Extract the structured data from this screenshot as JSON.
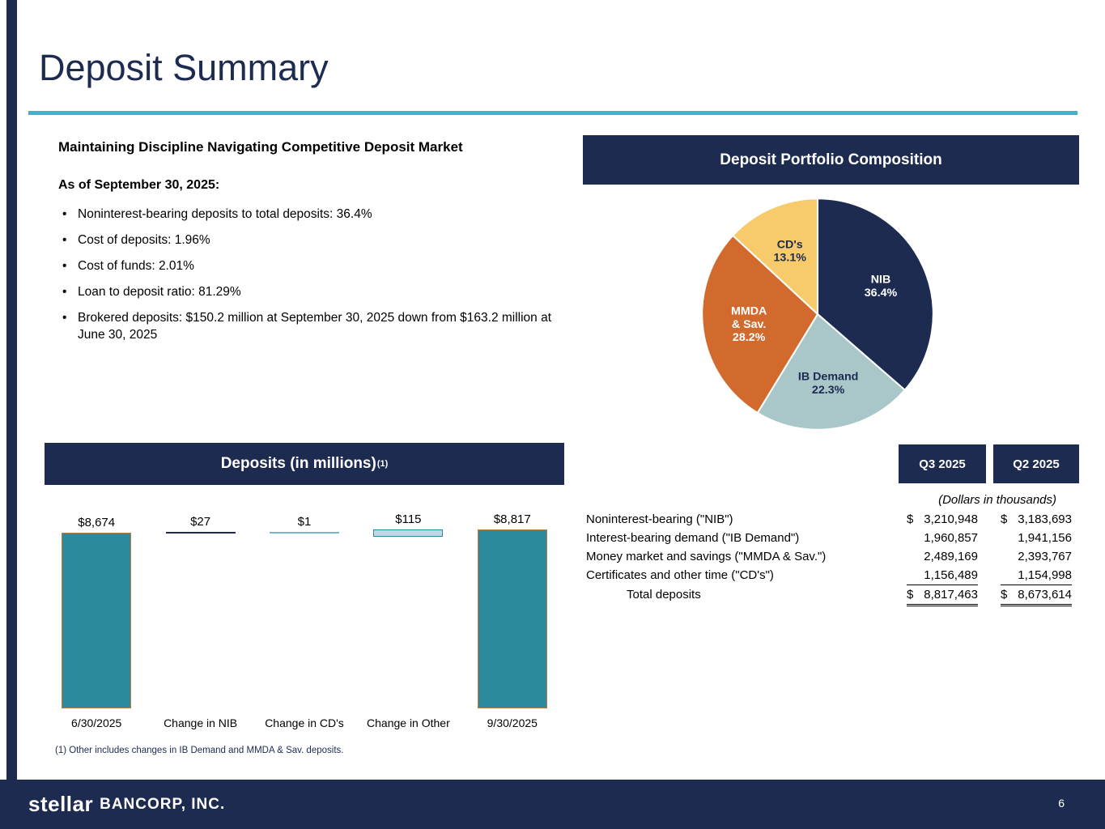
{
  "slide": {
    "title": "Deposit Summary",
    "page_number": "6"
  },
  "left_panel": {
    "heading": "Maintaining Discipline Navigating Competitive Deposit Market",
    "as_of": "As of September 30, 2025:",
    "bullets": [
      "Noninterest-bearing deposits to total deposits: 36.4%",
      "Cost of deposits: 1.96%",
      "Cost of funds: 2.01%",
      "Loan to deposit ratio: 81.29%",
      "Brokered deposits: $150.2 million at September 30, 2025 down from $163.2 million at June 30, 2025"
    ]
  },
  "pie_panel": {
    "title": "Deposit Portfolio Composition"
  },
  "waterfall_panel": {
    "title_main": "Deposits (in millions)",
    "title_sup": "(1)",
    "footnote": "(1) Other includes changes in IB Demand and MMDA & Sav. deposits."
  },
  "table": {
    "col_headers": [
      "Q3 2025",
      "Q2 2025"
    ],
    "units_note": "(Dollars in thousands)",
    "rows": [
      {
        "label": "Noninterest-bearing (\"NIB\")",
        "indent": false,
        "q3_sign": "$",
        "q3": "3,210,948",
        "q2_sign": "$",
        "q2": "3,183,693",
        "underline": "none"
      },
      {
        "label": "Interest-bearing demand (\"IB Demand\")",
        "indent": false,
        "q3_sign": "",
        "q3": "1,960,857",
        "q2_sign": "",
        "q2": "1,941,156",
        "underline": "none"
      },
      {
        "label": "Money market and savings (\"MMDA & Sav.\")",
        "indent": false,
        "q3_sign": "",
        "q3": "2,489,169",
        "q2_sign": "",
        "q2": "2,393,767",
        "underline": "none"
      },
      {
        "label": "Certificates and other time (\"CD's\")",
        "indent": false,
        "q3_sign": "",
        "q3": "1,156,489",
        "q2_sign": "",
        "q2": "1,154,998",
        "underline": "single"
      },
      {
        "label": "Total deposits",
        "indent": true,
        "q3_sign": "$",
        "q3": "8,817,463",
        "q2_sign": "$",
        "q2": "8,673,614",
        "underline": "double"
      }
    ]
  },
  "footer": {
    "logo_stellar": "stellar",
    "logo_bancorp": "BANCORP, INC."
  },
  "chart_data": [
    {
      "type": "pie",
      "title": "Deposit Portfolio Composition",
      "direction": "clockwise",
      "start_angle_deg": 0,
      "slices": [
        {
          "label_lines": [
            "NIB"
          ],
          "pct": "36.4%",
          "value": 36.4,
          "color": "#1d2b50",
          "label_color": "#ffffff"
        },
        {
          "label_lines": [
            "IB Demand"
          ],
          "pct": "22.3%",
          "value": 22.3,
          "color": "#a9c6c9",
          "label_color": "#1d2b50"
        },
        {
          "label_lines": [
            "MMDA",
            "& Sav."
          ],
          "pct": "28.2%",
          "value": 28.2,
          "color": "#d26a2e",
          "label_color": "#ffffff"
        },
        {
          "label_lines": [
            "CD's"
          ],
          "pct": "13.1%",
          "value": 13.1,
          "color": "#f7cb6b",
          "label_color": "#1d2b50"
        }
      ]
    },
    {
      "type": "bar",
      "subtype": "waterfall",
      "title": "Deposits (in millions)(1)",
      "categories": [
        "6/30/2025",
        "Change in NIB",
        "Change in CD's",
        "Change in Other",
        "9/30/2025"
      ],
      "values": [
        8674,
        27,
        1,
        115,
        8817
      ],
      "bar_labels": [
        "$8,674",
        "$27",
        "$1",
        "$115",
        "$8,817"
      ],
      "kinds": [
        "total",
        "change",
        "change",
        "change",
        "total"
      ],
      "fills": [
        "#2b8a9c",
        "#1d2b50",
        "#6fb9c9",
        "#bcd9e8",
        "#2b8a9c"
      ],
      "borders": [
        "#c07a3e",
        "#1d2b50",
        "#6fb9c9",
        "#2b8a9c",
        "#c07a3e"
      ],
      "ylim": [
        0,
        8817
      ]
    }
  ],
  "colors": {
    "navy": "#1d2b50",
    "teal_divider": "#3ab7c6",
    "bar_teal": "#2b8a9c"
  }
}
